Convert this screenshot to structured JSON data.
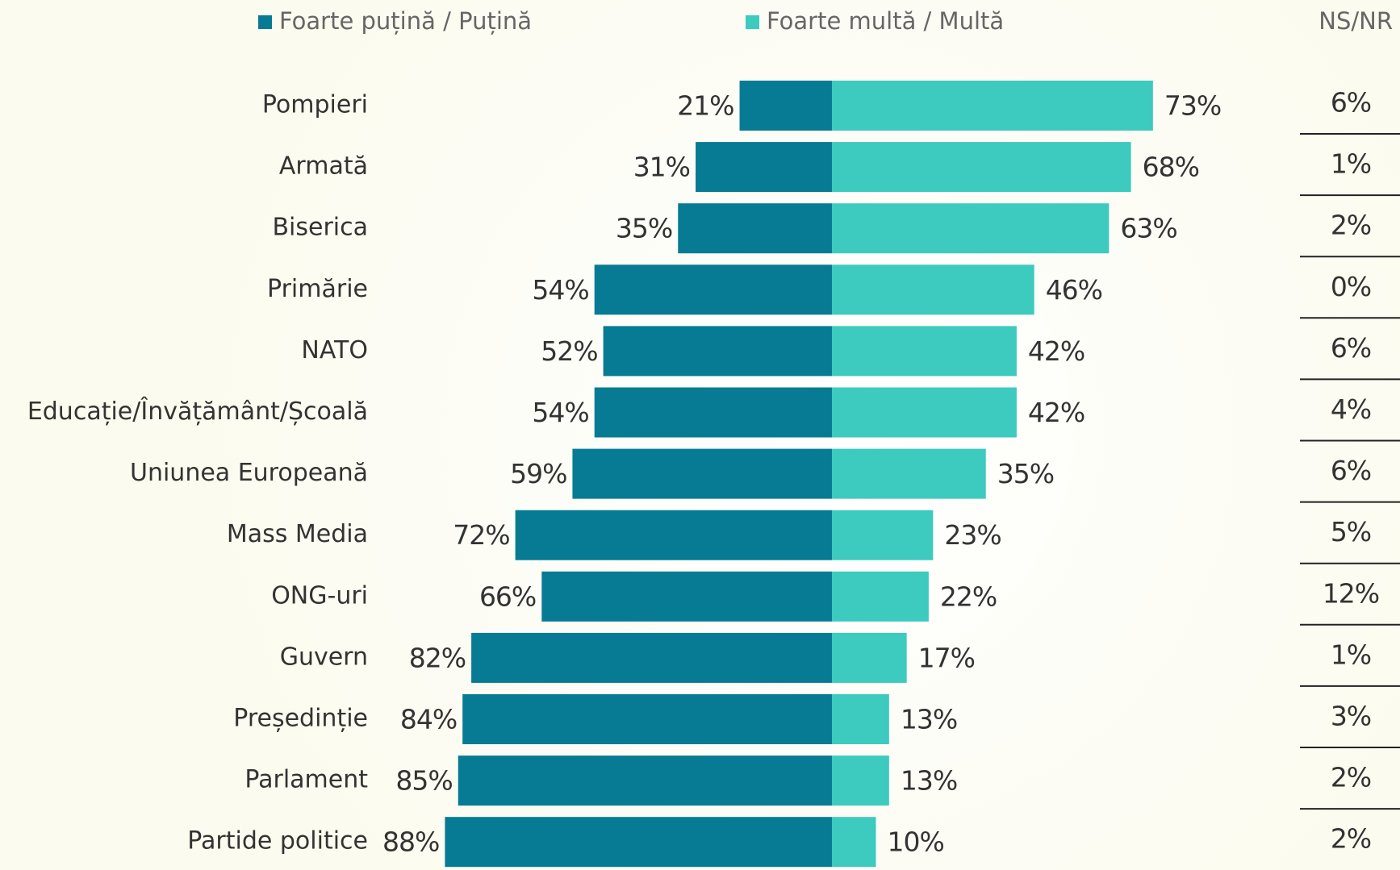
{
  "chart_data": {
    "type": "diverging_bar",
    "categories": [
      "Pompieri",
      "Armată",
      "Biserica",
      "Primărie",
      "NATO",
      "Educație/Învățământ/Școală",
      "Uniunea Europeană",
      "Mass Media",
      "ONG-uri",
      "Guvern",
      "Președinție",
      "Parlament",
      "Partide politice"
    ],
    "series": [
      {
        "name": "Foarte puțină / Puțină",
        "color": "#067b93",
        "values": [
          21,
          31,
          35,
          54,
          52,
          54,
          59,
          72,
          66,
          82,
          84,
          85,
          88
        ],
        "value_labels": [
          "21%",
          "31%",
          "35%",
          "54%",
          "52%",
          "54%",
          "59%",
          "72%",
          "66%",
          "82%",
          "84%",
          "85%",
          "88%"
        ]
      },
      {
        "name": "Foarte multă / Multă",
        "color": "#3dcabf",
        "values": [
          73,
          68,
          63,
          46,
          42,
          42,
          35,
          23,
          22,
          17,
          13,
          13,
          10
        ],
        "value_labels": [
          "73%",
          "68%",
          "63%",
          "46%",
          "42%",
          "42%",
          "35%",
          "23%",
          "22%",
          "17%",
          "13%",
          "13%",
          "10%"
        ]
      }
    ],
    "ns_nr": {
      "name": "NS/NR",
      "values": [
        6,
        1,
        2,
        0,
        6,
        4,
        6,
        5,
        12,
        1,
        3,
        2,
        2
      ],
      "value_labels": [
        "6%",
        "1%",
        "2%",
        "0%",
        "6%",
        "4%",
        "6%",
        "5%",
        "12%",
        "1%",
        "3%",
        "2%",
        "2%"
      ]
    }
  }
}
